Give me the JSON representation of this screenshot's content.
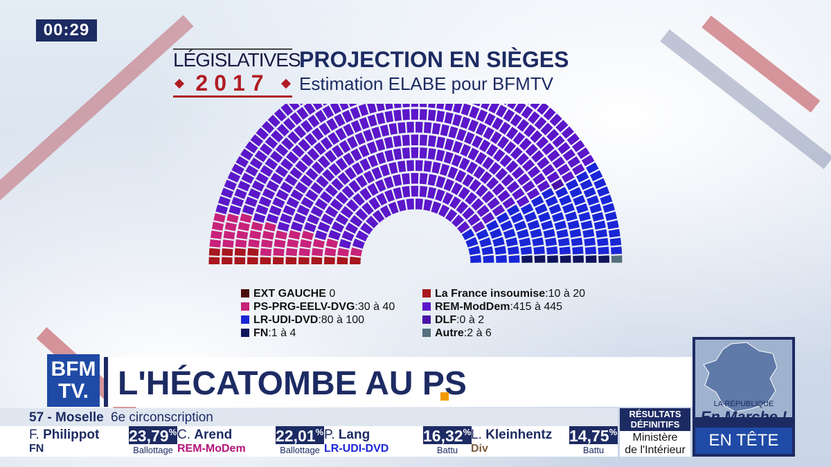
{
  "clock": "00:29",
  "graphic": {
    "legislatives": "LÉGISLATIVES",
    "year": "2017",
    "title": "PROJECTION EN SIÈGES",
    "subtitle": "Estimation ELABE pour BFMTV"
  },
  "chart_data": {
    "type": "hemicycle",
    "total_seats": 577,
    "series": [
      {
        "name": "EXT GAUCHE",
        "value": "0",
        "estimate": 0,
        "color": "#4a0d0d"
      },
      {
        "name": "La France insoumise",
        "value": "10 à 20",
        "estimate": 15,
        "color": "#a8161e"
      },
      {
        "name": "PS-PRG-EELV-DVG",
        "value": "30 à 40",
        "estimate": 35,
        "color": "#c8227a"
      },
      {
        "name": "REM-ModDem",
        "value": "415 à 445",
        "estimate": 430,
        "color": "#5b17c9"
      },
      {
        "name": "DLF",
        "value": "0 à 2",
        "estimate": 1,
        "color": "#4a12a6"
      },
      {
        "name": "LR-UDI-DVD",
        "value": "80 à 100",
        "estimate": 85,
        "color": "#1a26d6"
      },
      {
        "name": "FN",
        "value": "1 à 4",
        "estimate": 3,
        "color": "#10145c"
      },
      {
        "name": "Autre",
        "value": "2 à 6",
        "estimate": 4,
        "color": "#54707d"
      }
    ]
  },
  "legend_left": [
    {
      "label": "EXT GAUCHE",
      "value": "0",
      "color": "#4a0d0d"
    },
    {
      "label": "PS-PRG-EELV-DVG",
      "value": ":30 à 40",
      "color": "#c8227a"
    },
    {
      "label": "LR-UDI-DVD",
      "value": ":80 à 100",
      "color": "#1a26d6"
    },
    {
      "label": "FN",
      "value": ":1 à 4",
      "color": "#10145c"
    }
  ],
  "legend_right": [
    {
      "label": "La France insoumise",
      "value": ":10 à 20",
      "color": "#a8161e"
    },
    {
      "label": "REM-ModDem",
      "value": ":415 à 445",
      "color": "#5b17c9"
    },
    {
      "label": "DLF",
      "value": ":0 à 2",
      "color": "#4a12a6"
    },
    {
      "label": "Autre",
      "value": ":2 à 6",
      "color": "#54707d"
    }
  ],
  "logo": {
    "line1": "BFM",
    "line2": "TV."
  },
  "headline": "L'HÉCATOMBE AU PS",
  "circonscription": {
    "dept": "57 - Moselle",
    "name": "6e circonscription"
  },
  "candidates": [
    {
      "initial": "F.",
      "surname": "Philippot",
      "party": "FN",
      "party_color": "#1d2b63",
      "pct": "23,79",
      "pct_sign": "%",
      "status": "Ballottage"
    },
    {
      "initial": "C.",
      "surname": "Arend",
      "party": "REM-MoDem",
      "party_color": "#b5127a",
      "pct": "22,01",
      "pct_sign": "%",
      "status": "Ballottage"
    },
    {
      "initial": "P.",
      "surname": "Lang",
      "party": "LR-UDI-DVD",
      "party_color": "#1a26d6",
      "pct": "16,32",
      "pct_sign": "%",
      "status": "Battu"
    },
    {
      "initial": "L.",
      "surname": "Kleinhentz",
      "party": "Div",
      "party_color": "#7a5a3a",
      "pct": "14,75",
      "pct_sign": "%",
      "status": "Battu"
    }
  ],
  "result": {
    "title_l1": "RÉSULTATS",
    "title_l2": "DÉFINITIFS",
    "source_l1": "Ministère",
    "source_l2": "de l'Intérieur"
  },
  "republique": {
    "small": "LA RÉPUBLIQUE",
    "main": "En Marche !",
    "band": "EN TÊTE"
  },
  "colors": {
    "navy": "#1d2b63",
    "accent": "#f29a00",
    "red": "#b01c24"
  }
}
